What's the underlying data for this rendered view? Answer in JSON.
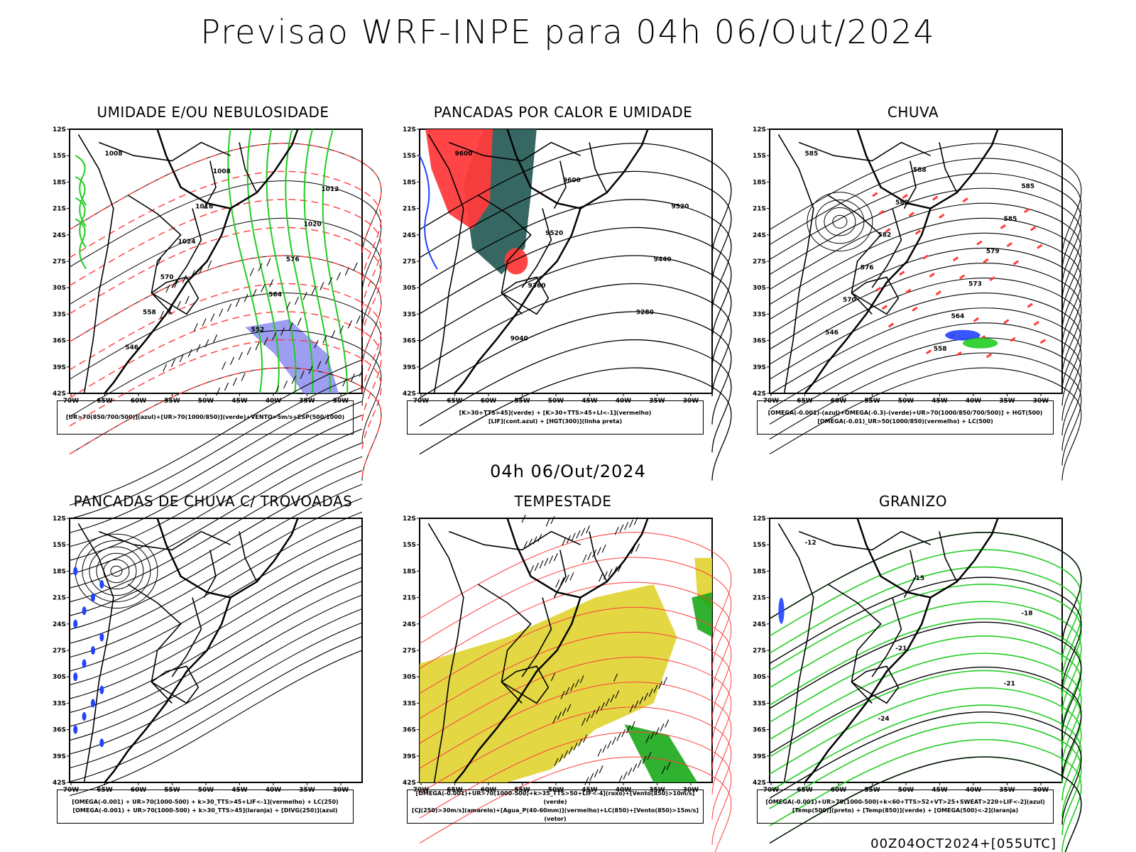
{
  "header": {
    "title": "Previsao WRF-INPE  para 04h 06/Out/2024",
    "mid_time": "04h 06/Out/2024",
    "footer": "00Z04OCT2024+[055UTC]"
  },
  "axes": {
    "lat_labels": [
      "12S",
      "15S",
      "18S",
      "21S",
      "24S",
      "27S",
      "30S",
      "33S",
      "36S",
      "39S",
      "42S"
    ],
    "lon_labels": [
      "70W",
      "65W",
      "60W",
      "55W",
      "50W",
      "45W",
      "40W",
      "35W",
      "30W"
    ]
  },
  "colors": {
    "red": "#ff3b3b",
    "green": "#22cc22",
    "blue": "#2244ff",
    "teal": "#2c5f5a",
    "yellow": "#e0d430",
    "lavender": "#8c8cf0",
    "orange": "#ff7a00"
  },
  "panels": [
    {
      "title": "UMIDADE E/OU NEBULOSIDADE",
      "legend": [
        "[UR>70(850/700/500)](azul)+[UR>70(1000/850)](verde)+VENTO>5m/s+ESP(500/1000)"
      ],
      "contour_labels": [
        "1008",
        "1008",
        "1012",
        "1016",
        "1020",
        "1024",
        "576",
        "570",
        "564",
        "558",
        "552",
        "546"
      ]
    },
    {
      "title": "PANCADAS POR CALOR E UMIDADE",
      "legend": [
        "[K>30+TTS>45](verde) + [K>30+TTS>45+LI<-1](vermelho)",
        "[LIF](cont.azul) + [HGT(300)](linha preta)"
      ],
      "contour_labels": [
        "9600",
        "9600",
        "9520",
        "9520",
        "9440",
        "9360",
        "9280",
        "9040"
      ]
    },
    {
      "title": "CHUVA",
      "legend": [
        "[OMEGA(-0.001)-(azul)+OMEGA(-0.3)-(verde)+UR>70(1000/850/700/500)] + HGT(500)",
        "[OMEGA(-0.01)_UR>50(1000/850)(vermelho) + LC(500)"
      ],
      "contour_labels": [
        "585",
        "588",
        "585",
        "582",
        "585",
        "582",
        "579",
        "576",
        "573",
        "570",
        "564",
        "546",
        "558"
      ]
    },
    {
      "title": "PANCADAS DE CHUVA C/ TROVOADAS",
      "legend": [
        "[OMEGA(-0.001) + UR>70(1000-500) + k>30_TTS>45+LIF<-1](vermelho) + LC(250)",
        "[OMEGA(-0.001) + UR>70(1000-500) + k>30_TTS>45](laranja) + [DIVG(250)](azul)"
      ],
      "contour_labels": []
    },
    {
      "title": "TEMPESTADE",
      "legend": [
        "[OMEGA(-0.001)+UR>70(1000-500)+k>35_TTS>50+LIF<-4](roxo)+[Vento(850)>10m/s](verde)",
        "[CJ(250)>30m/s](amarelo)+[Agua_P(40-60mm)](vermelho)+LC(850)+[Vento(850)>15m/s](vetor)"
      ],
      "contour_labels": []
    },
    {
      "title": "GRANIZO",
      "legend": [
        "[OMEGA(-0.001)+UR>70(1000-500)+k<60+TTS>52+VT>25+SWEAT>220+LIF<-2](azul)",
        "[Temp(500)](preto) + [Temp(850)](verde) + [OMEGA(500)<-2](laranja)"
      ],
      "contour_labels": [
        "-12",
        "-15",
        "-18",
        "-21",
        "-21",
        "-24"
      ]
    }
  ]
}
